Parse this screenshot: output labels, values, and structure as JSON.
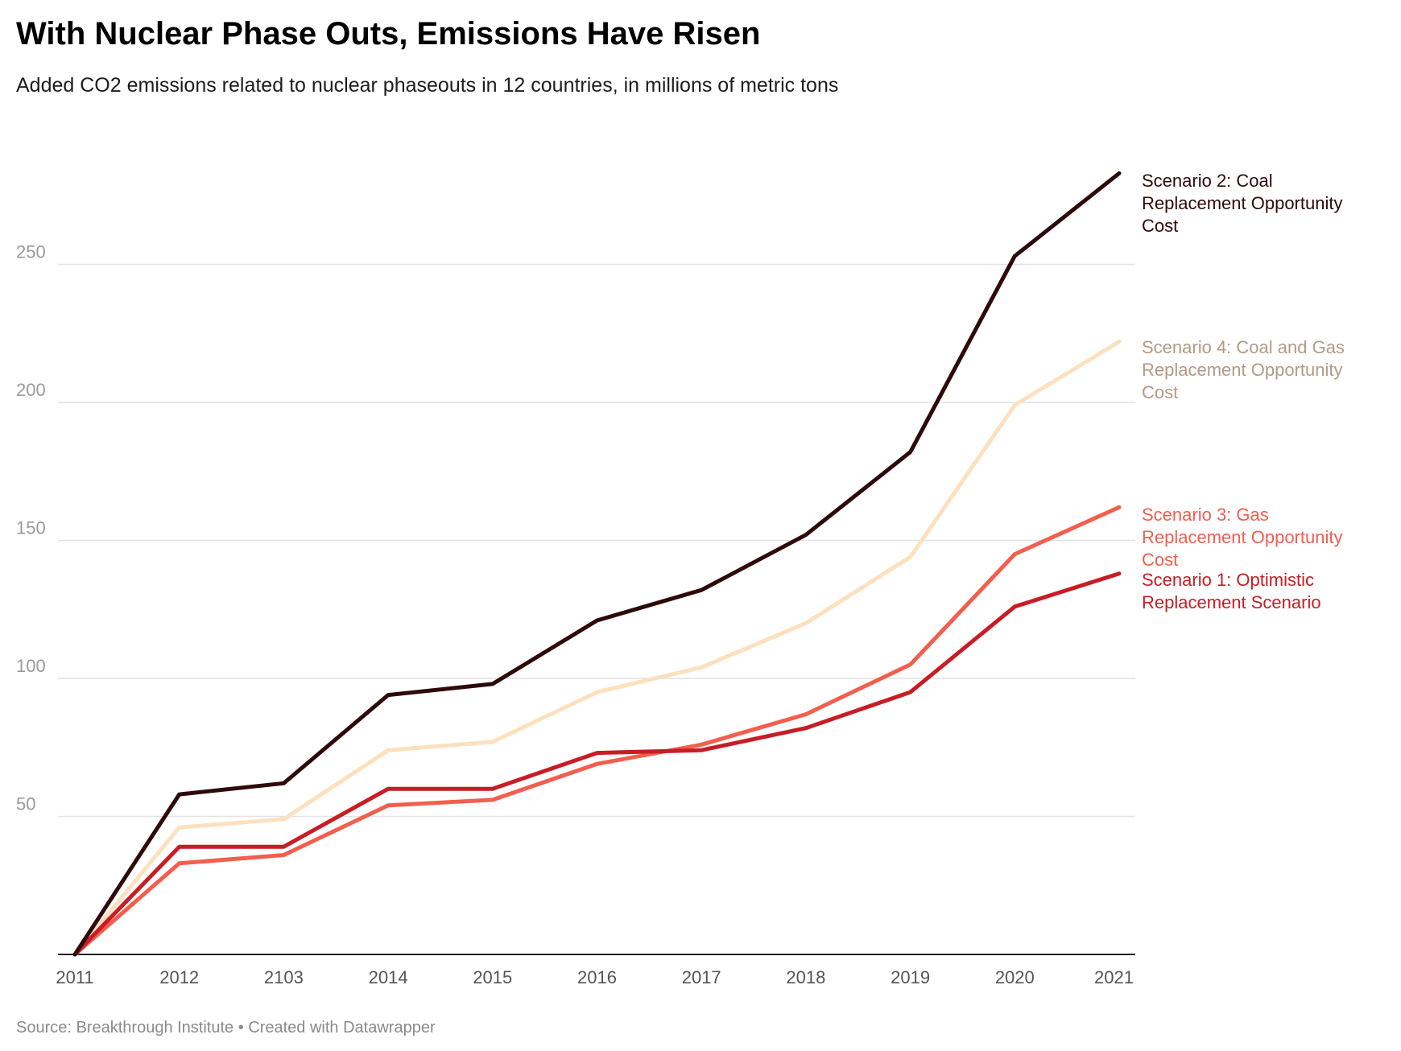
{
  "header": {
    "title": "With Nuclear Phase Outs, Emissions Have Risen",
    "subtitle": "Added CO2 emissions related to nuclear phaseouts in 12 countries, in millions of metric tons"
  },
  "footer": {
    "source": "Source: Breakthrough Institute • Created with Datawrapper"
  },
  "chart_data": {
    "type": "line",
    "title": "With Nuclear Phase Outs, Emissions Have Risen",
    "subtitle": "Added CO2 emissions related to nuclear phaseouts in 12 countries, in millions of metric tons",
    "xlabel": "",
    "ylabel": "",
    "categories": [
      "2011",
      "2012",
      "2103",
      "2014",
      "2015",
      "2016",
      "2017",
      "2018",
      "2019",
      "2020",
      "2021"
    ],
    "ylim": [
      0,
      290
    ],
    "yticks": [
      50,
      100,
      150,
      200,
      250
    ],
    "grid": true,
    "legend": "direct labels at line ends",
    "series": [
      {
        "name": "Scenario 2: Coal Replacement Opportunity Cost",
        "label_lines": [
          "Scenario 2: Coal",
          "Replacement Opportunity",
          "Cost"
        ],
        "color": "#2e0a0a",
        "label_color": "#2e0a0a",
        "values": [
          0,
          58,
          62,
          94,
          98,
          121,
          132,
          152,
          182,
          253,
          283
        ]
      },
      {
        "name": "Scenario 4: Coal and Gas Replacement Opportunity Cost",
        "label_lines": [
          "Scenario 4: Coal and Gas",
          "Replacement Opportunity",
          "Cost"
        ],
        "color": "#fde0be",
        "label_color": "#b39a84",
        "values": [
          0,
          46,
          49,
          74,
          77,
          95,
          104,
          120,
          144,
          199,
          222
        ]
      },
      {
        "name": "Scenario 3: Gas Replacement Opportunity Cost",
        "label_lines": [
          "Scenario 3: Gas",
          "Replacement Opportunity",
          "Cost"
        ],
        "color": "#f35e4d",
        "label_color": "#f35e4d",
        "values": [
          0,
          33,
          36,
          54,
          56,
          69,
          76,
          87,
          105,
          145,
          162
        ]
      },
      {
        "name": "Scenario 1: Optimistic Replacement Scenario",
        "label_lines": [
          "Scenario 1: Optimistic",
          "Replacement Scenario"
        ],
        "color": "#c81d25",
        "label_color": "#c81d25",
        "values": [
          0,
          39,
          39,
          60,
          60,
          73,
          74,
          82,
          95,
          126,
          138
        ]
      }
    ]
  }
}
